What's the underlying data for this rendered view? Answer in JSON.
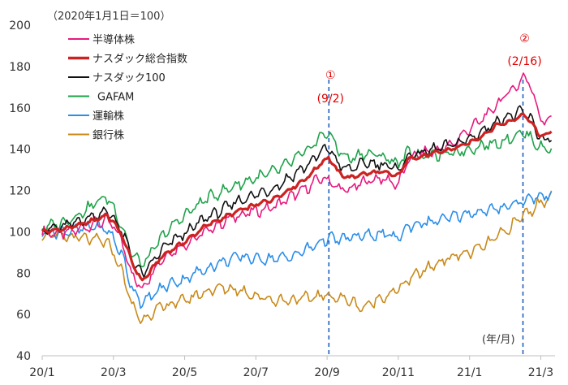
{
  "chart_data": {
    "type": "line",
    "base_note": "（2020年1月1日＝100）",
    "unit_note": "(年/月)",
    "ylim": [
      40,
      200
    ],
    "yticks": [
      40,
      60,
      80,
      100,
      120,
      140,
      160,
      180,
      200
    ],
    "xlim": [
      0,
      14.4
    ],
    "xticks": [
      {
        "label": "20/1",
        "x": 0
      },
      {
        "label": "20/3",
        "x": 2
      },
      {
        "label": "20/5",
        "x": 4
      },
      {
        "label": "20/7",
        "x": 6
      },
      {
        "label": "20/9",
        "x": 8
      },
      {
        "label": "20/11",
        "x": 10
      },
      {
        "label": "21/1",
        "x": 12
      },
      {
        "label": "21/3",
        "x": 14
      }
    ],
    "markers": [
      {
        "symbol": "①",
        "label": "(9/2)",
        "x": 8.05
      },
      {
        "symbol": "②",
        "label": "(2/16)",
        "x": 13.5
      }
    ],
    "series": [
      {
        "name": "半導体株",
        "color": "#e8197e",
        "width": 1.6,
        "x": [
          0,
          0.5,
          1,
          1.5,
          1.8,
          2,
          2.3,
          2.5,
          2.8,
          3,
          3.3,
          3.6,
          4,
          4.3,
          4.6,
          5,
          5.5,
          6,
          6.5,
          7,
          7.5,
          7.8,
          8.05,
          8.3,
          8.6,
          9,
          9.5,
          10,
          10.3,
          10.6,
          11,
          11.5,
          12,
          12.4,
          12.8,
          13.1,
          13.3,
          13.5,
          13.7,
          13.9,
          14.1,
          14.3
        ],
        "values": [
          100,
          99,
          101,
          104,
          105,
          103,
          93,
          80,
          72,
          78,
          86,
          90,
          94,
          97,
          100,
          104,
          108,
          110,
          112,
          117,
          122,
          126,
          125,
          121,
          120,
          124,
          126,
          123,
          135,
          138,
          139,
          142,
          150,
          155,
          162,
          168,
          170,
          175,
          172,
          160,
          152,
          156
        ]
      },
      {
        "name": "ナスダック総合指数",
        "color": "#cc2222",
        "width": 3.2,
        "x": [
          0,
          0.5,
          1,
          1.5,
          1.8,
          2,
          2.3,
          2.5,
          2.8,
          3,
          3.3,
          3.6,
          4,
          4.3,
          4.6,
          5,
          5.5,
          6,
          6.5,
          7,
          7.5,
          7.8,
          8.05,
          8.3,
          8.6,
          9,
          9.5,
          10,
          10.3,
          10.6,
          11,
          11.5,
          12,
          12.4,
          12.8,
          13.1,
          13.3,
          13.5,
          13.7,
          13.9,
          14.1,
          14.3
        ],
        "values": [
          100,
          101,
          103,
          106,
          108,
          105,
          96,
          86,
          76,
          80,
          87,
          91,
          95,
          99,
          103,
          106,
          110,
          113,
          116,
          121,
          127,
          133,
          136,
          129,
          126,
          128,
          129,
          127,
          136,
          136,
          138,
          140,
          143,
          147,
          152,
          153,
          155,
          157,
          154,
          148,
          146,
          149
        ]
      },
      {
        "name": "ナスダック100",
        "color": "#111111",
        "width": 1.6,
        "x": [
          0,
          0.5,
          1,
          1.5,
          1.8,
          2,
          2.3,
          2.5,
          2.8,
          3,
          3.3,
          3.6,
          4,
          4.3,
          4.6,
          5,
          5.5,
          6,
          6.5,
          7,
          7.5,
          7.8,
          8.05,
          8.3,
          8.6,
          9,
          9.5,
          10,
          10.3,
          10.6,
          11,
          11.5,
          12,
          12.4,
          12.8,
          13.1,
          13.3,
          13.5,
          13.7,
          13.9,
          14.1,
          14.3
        ],
        "values": [
          101,
          102,
          105,
          108,
          110,
          107,
          98,
          88,
          79,
          83,
          90,
          95,
          99,
          103,
          107,
          110,
          115,
          118,
          121,
          127,
          133,
          138,
          141,
          133,
          130,
          133,
          133,
          130,
          137,
          138,
          140,
          142,
          145,
          149,
          154,
          156,
          157,
          158,
          155,
          148,
          144,
          146
        ]
      },
      {
        "name": "GAFAM",
        "color": "#1fa34a",
        "width": 1.6,
        "x": [
          0,
          0.5,
          1,
          1.5,
          1.8,
          2,
          2.3,
          2.5,
          2.8,
          3,
          3.3,
          3.6,
          4,
          4.3,
          4.6,
          5,
          5.5,
          6,
          6.5,
          7,
          7.5,
          7.8,
          8.05,
          8.3,
          8.6,
          9,
          9.5,
          10,
          10.3,
          10.6,
          11,
          11.5,
          12,
          12.4,
          12.8,
          13.1,
          13.3,
          13.5,
          13.7,
          13.9,
          14.1,
          14.3
        ],
        "values": [
          102,
          104,
          108,
          114,
          117,
          112,
          100,
          90,
          84,
          88,
          96,
          102,
          108,
          112,
          116,
          119,
          123,
          126,
          129,
          134,
          140,
          146,
          148,
          140,
          135,
          138,
          137,
          133,
          139,
          137,
          137,
          138,
          140,
          142,
          143,
          145,
          147,
          148,
          146,
          142,
          140,
          141
        ]
      },
      {
        "name": "運輸株",
        "color": "#2b8ee8",
        "width": 1.6,
        "x": [
          0,
          0.5,
          1,
          1.5,
          1.8,
          2,
          2.3,
          2.5,
          2.8,
          3,
          3.3,
          3.6,
          4,
          4.3,
          4.6,
          5,
          5.5,
          6,
          6.5,
          7,
          7.5,
          7.8,
          8.05,
          8.3,
          8.6,
          9,
          9.5,
          10,
          10.3,
          10.6,
          11,
          11.5,
          12,
          12.4,
          12.8,
          13.1,
          13.3,
          13.5,
          13.7,
          13.9,
          14.1,
          14.3
        ],
        "values": [
          100,
          100,
          101,
          103,
          101,
          97,
          86,
          74,
          65,
          68,
          72,
          75,
          77,
          80,
          82,
          85,
          88,
          87,
          87,
          88,
          92,
          95,
          97,
          96,
          97,
          98,
          99,
          97,
          103,
          104,
          105,
          107,
          109,
          110,
          111,
          113,
          114,
          115,
          116,
          117,
          117,
          119
        ]
      },
      {
        "name": "銀行株",
        "color": "#c98a1a",
        "width": 1.6,
        "x": [
          0,
          0.5,
          1,
          1.5,
          1.8,
          2,
          2.3,
          2.5,
          2.8,
          3,
          3.3,
          3.6,
          4,
          4.3,
          4.6,
          5,
          5.5,
          6,
          6.5,
          7,
          7.5,
          7.8,
          8.05,
          8.3,
          8.6,
          9,
          9.5,
          10,
          10.3,
          10.6,
          11,
          11.5,
          12,
          12.4,
          12.8,
          13.1,
          13.3,
          13.5,
          13.7,
          13.9,
          14.1,
          14.3
        ],
        "values": [
          99,
          98,
          97,
          96,
          95,
          90,
          78,
          65,
          57,
          60,
          63,
          65,
          67,
          69,
          71,
          73,
          72,
          69,
          67,
          67,
          68,
          69,
          69,
          68,
          67,
          63,
          68,
          72,
          77,
          80,
          84,
          88,
          90,
          93,
          98,
          101,
          105,
          108,
          110,
          113,
          115,
          118
        ]
      }
    ]
  }
}
